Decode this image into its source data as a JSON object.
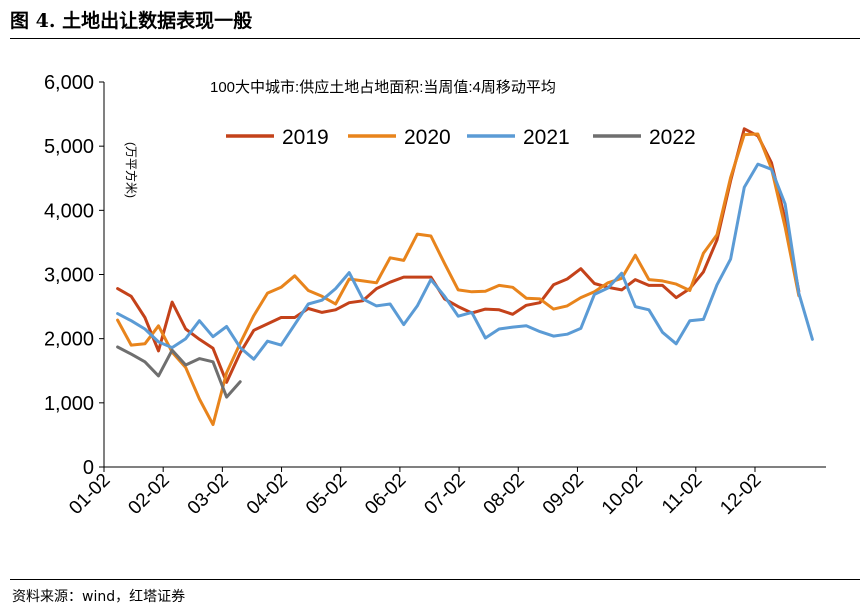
{
  "figure": {
    "title": "图 4. 土地出让数据表现一般",
    "source": "资料来源：wind，红塔证券"
  },
  "chart_data": {
    "type": "line",
    "title": "100大中城市:供应土地占地面积:当周值:4周移动平均",
    "unit_label": "(万平方米)",
    "xlabel": "",
    "ylabel": "",
    "ylim": [
      0,
      6000
    ],
    "yticks": [
      0,
      1000,
      2000,
      3000,
      4000,
      5000,
      6000
    ],
    "ytick_labels": [
      "0",
      "1,000",
      "2,000",
      "3,000",
      "4,000",
      "5,000",
      "6,000"
    ],
    "xticks": [
      "01-02",
      "02-02",
      "03-02",
      "04-02",
      "05-02",
      "06-02",
      "07-02",
      "08-02",
      "09-02",
      "10-02",
      "11-02",
      "12-02"
    ],
    "xlim_weeks": [
      0,
      53
    ],
    "grid": false,
    "legend_position": "top-center",
    "series": [
      {
        "name": "2019",
        "color": "#c4421a",
        "values": [
          2780,
          2660,
          2330,
          1810,
          2570,
          2150,
          1990,
          1850,
          1320,
          1780,
          2130,
          2230,
          2330,
          2330,
          2470,
          2410,
          2450,
          2560,
          2590,
          2780,
          2880,
          2960,
          2960,
          2960,
          2620,
          2500,
          2400,
          2460,
          2450,
          2380,
          2520,
          2560,
          2840,
          2930,
          3090,
          2860,
          2800,
          2760,
          2920,
          2830,
          2830,
          2640,
          2780,
          3040,
          3540,
          4460,
          5270,
          5160,
          4740,
          3860,
          2740
        ]
      },
      {
        "name": "2020",
        "color": "#e8841c",
        "values": [
          2290,
          1900,
          1920,
          2200,
          1790,
          1550,
          1060,
          660,
          1470,
          1930,
          2360,
          2710,
          2800,
          2980,
          2750,
          2660,
          2540,
          2930,
          2900,
          2870,
          3260,
          3220,
          3630,
          3600,
          3170,
          2760,
          2730,
          2740,
          2830,
          2800,
          2630,
          2620,
          2460,
          2510,
          2640,
          2730,
          2870,
          2940,
          3300,
          2920,
          2900,
          2850,
          2750,
          3330,
          3620,
          4510,
          5180,
          5190,
          4650,
          3740,
          2670
        ]
      },
      {
        "name": "2021",
        "color": "#5b9bd5",
        "values": [
          2390,
          2280,
          2150,
          1950,
          1860,
          2000,
          2280,
          2030,
          2190,
          1860,
          1680,
          1960,
          1900,
          2220,
          2540,
          2600,
          2780,
          3030,
          2620,
          2510,
          2540,
          2220,
          2510,
          2920,
          2660,
          2350,
          2410,
          2010,
          2150,
          2180,
          2200,
          2110,
          2040,
          2070,
          2160,
          2690,
          2790,
          3020,
          2500,
          2450,
          2100,
          1920,
          2280,
          2300,
          2840,
          3240,
          4360,
          4720,
          4640,
          4100,
          2710,
          1990
        ]
      },
      {
        "name": "2022",
        "color": "#6f6f6f",
        "values": [
          1870,
          1760,
          1640,
          1420,
          1820,
          1590,
          1690,
          1640,
          1090,
          1330
        ]
      }
    ]
  }
}
